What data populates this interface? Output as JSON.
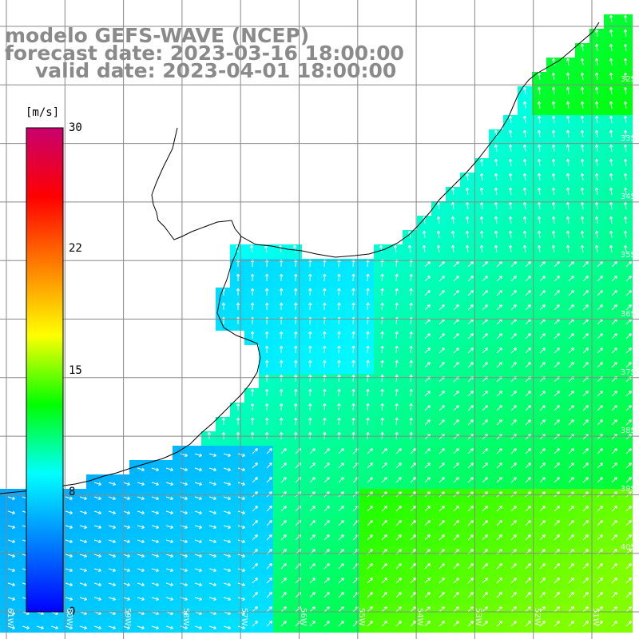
{
  "title": {
    "line1": "modelo GEFS-WAVE (NCEP)",
    "line2": "forecast date: 2023-03-16 18:00:00",
    "line3": "valid date: 2023-04-01 18:00:00"
  },
  "colorbar": {
    "unit": "[m/s]",
    "ticks": [
      "30",
      "22",
      "15",
      "8",
      "0"
    ],
    "tick_values": [
      30,
      22,
      15,
      8,
      0
    ],
    "range": [
      0,
      30
    ],
    "colors": [
      "#0000ff",
      "#0080ff",
      "#00ffff",
      "#00ff00",
      "#ffff00",
      "#ff8000",
      "#ff0000",
      "#c8006e"
    ]
  },
  "map": {
    "variable": "wind speed and direction",
    "land_color": "#ffffff",
    "grid_color": "#888888",
    "lat_labels": [
      "32S",
      "33S",
      "34S",
      "35S",
      "36S",
      "37S",
      "38S",
      "39S",
      "40S"
    ],
    "lon_labels": [
      "61W",
      "60W",
      "59W",
      "58W",
      "57W",
      "56W",
      "55W",
      "54W",
      "53W",
      "52W",
      "51W"
    ]
  }
}
